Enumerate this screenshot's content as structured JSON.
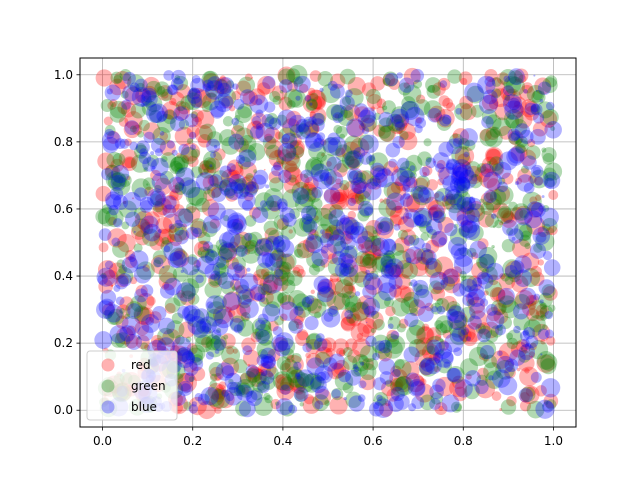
{
  "chart_data": {
    "type": "scatter",
    "title": "",
    "xlabel": "",
    "ylabel": "",
    "xlim": [
      -0.05,
      1.05
    ],
    "ylim": [
      -0.05,
      1.05
    ],
    "grid": true,
    "legend_position": "lower-left",
    "x_ticks": [
      "0.0",
      "0.2",
      "0.4",
      "0.6",
      "0.8",
      "1.0"
    ],
    "y_ticks": [
      "0.0",
      "0.2",
      "0.4",
      "0.6",
      "0.8",
      "1.0"
    ],
    "alpha": 0.3,
    "points_per_series": 750,
    "size_range": [
      0.1,
      200
    ],
    "series": [
      {
        "name": "red",
        "color": "#ff0000",
        "seed": 11
      },
      {
        "name": "green",
        "color": "#008000",
        "seed": 29
      },
      {
        "name": "blue",
        "color": "#0000ff",
        "seed": 47
      }
    ]
  }
}
